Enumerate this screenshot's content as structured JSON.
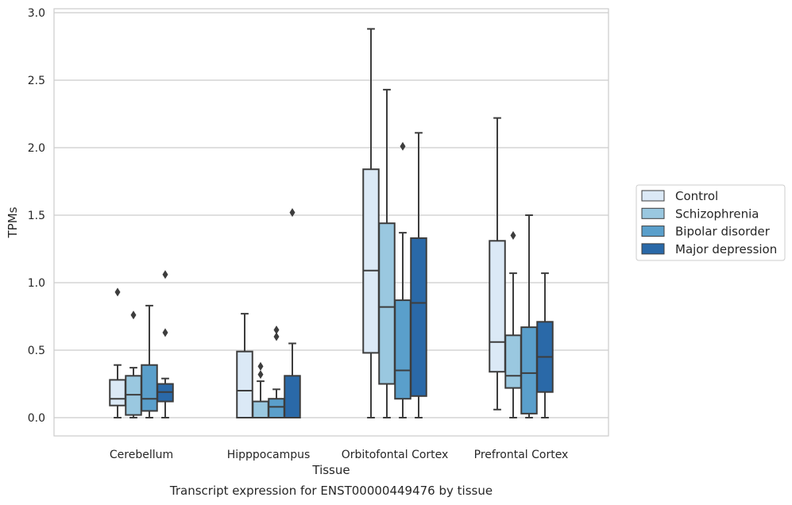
{
  "chart_data": {
    "type": "box",
    "title": "Transcript expression for ENST00000449476 by tissue",
    "xlabel": "Tissue",
    "ylabel": "TPMs",
    "ylim": [
      -0.14,
      3.02
    ],
    "yticks": [
      "0.0",
      "0.5",
      "1.0",
      "1.5",
      "2.0",
      "2.5",
      "3.0"
    ],
    "grid": true,
    "legend_position": "right",
    "categories": [
      "Cerebellum",
      "Hipppocampus",
      "Orbitofontal Cortex",
      "Prefrontal Cortex"
    ],
    "series": [
      {
        "name": "Control",
        "color": "#dbe9f6",
        "boxes": [
          {
            "min": 0.0,
            "q1": 0.09,
            "median": 0.14,
            "q3": 0.28,
            "max": 0.39,
            "outliers": [
              0.93
            ]
          },
          {
            "min": 0.0,
            "q1": 0.0,
            "median": 0.2,
            "q3": 0.49,
            "max": 0.77,
            "outliers": []
          },
          {
            "min": 0.0,
            "q1": 0.48,
            "median": 1.09,
            "q3": 1.84,
            "max": 2.88,
            "outliers": []
          },
          {
            "min": 0.06,
            "q1": 0.34,
            "median": 0.56,
            "q3": 1.31,
            "max": 2.22,
            "outliers": []
          }
        ]
      },
      {
        "name": "Schizophrenia",
        "color": "#9ac8e0",
        "boxes": [
          {
            "min": 0.0,
            "q1": 0.02,
            "median": 0.17,
            "q3": 0.31,
            "max": 0.37,
            "outliers": [
              0.76
            ]
          },
          {
            "min": 0.0,
            "q1": 0.0,
            "median": 0.0,
            "q3": 0.12,
            "max": 0.27,
            "outliers": [
              0.32,
              0.38
            ]
          },
          {
            "min": 0.0,
            "q1": 0.25,
            "median": 0.82,
            "q3": 1.44,
            "max": 2.43,
            "outliers": []
          },
          {
            "min": 0.0,
            "q1": 0.22,
            "median": 0.31,
            "q3": 0.61,
            "max": 1.07,
            "outliers": [
              1.35
            ]
          }
        ]
      },
      {
        "name": "Bipolar disorder",
        "color": "#5a9fcb",
        "boxes": [
          {
            "min": 0.0,
            "q1": 0.05,
            "median": 0.14,
            "q3": 0.39,
            "max": 0.83,
            "outliers": []
          },
          {
            "min": 0.0,
            "q1": 0.0,
            "median": 0.08,
            "q3": 0.14,
            "max": 0.21,
            "outliers": [
              0.6,
              0.65
            ]
          },
          {
            "min": 0.0,
            "q1": 0.14,
            "median": 0.35,
            "q3": 0.87,
            "max": 1.37,
            "outliers": [
              2.01
            ]
          },
          {
            "min": 0.0,
            "q1": 0.03,
            "median": 0.33,
            "q3": 0.67,
            "max": 1.5,
            "outliers": []
          }
        ]
      },
      {
        "name": "Major depression",
        "color": "#2a69a8",
        "boxes": [
          {
            "min": 0.0,
            "q1": 0.12,
            "median": 0.19,
            "q3": 0.25,
            "max": 0.29,
            "outliers": [
              0.63,
              1.06
            ]
          },
          {
            "min": 0.0,
            "q1": 0.0,
            "median": 0.0,
            "q3": 0.31,
            "max": 0.55,
            "outliers": [
              1.52
            ]
          },
          {
            "min": 0.0,
            "q1": 0.16,
            "median": 0.85,
            "q3": 1.33,
            "max": 2.11,
            "outliers": []
          },
          {
            "min": 0.0,
            "q1": 0.19,
            "median": 0.45,
            "q3": 0.71,
            "max": 1.07,
            "outliers": []
          }
        ]
      }
    ]
  }
}
